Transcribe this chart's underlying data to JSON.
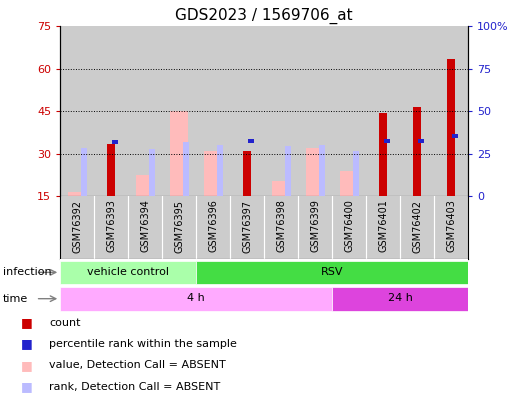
{
  "title": "GDS2023 / 1569706_at",
  "samples": [
    "GSM76392",
    "GSM76393",
    "GSM76394",
    "GSM76395",
    "GSM76396",
    "GSM76397",
    "GSM76398",
    "GSM76399",
    "GSM76400",
    "GSM76401",
    "GSM76402",
    "GSM76403"
  ],
  "count_values": [
    null,
    33.5,
    null,
    null,
    null,
    31.0,
    null,
    null,
    null,
    44.5,
    46.5,
    63.5
  ],
  "rank_values": [
    null,
    32.0,
    null,
    null,
    null,
    32.5,
    null,
    null,
    null,
    32.5,
    32.5,
    35.5
  ],
  "absent_value_values": [
    16.5,
    null,
    22.5,
    45.0,
    31.0,
    null,
    20.5,
    32.0,
    24.0,
    null,
    null,
    null
  ],
  "absent_rank_values": [
    28.5,
    null,
    28.0,
    32.0,
    30.5,
    null,
    29.5,
    30.0,
    26.5,
    null,
    null,
    null
  ],
  "left_ylim": [
    15,
    75
  ],
  "left_yticks": [
    15,
    30,
    45,
    60,
    75
  ],
  "right_ylim": [
    0,
    100
  ],
  "right_yticks": [
    0,
    25,
    50,
    75,
    100
  ],
  "right_yticklabels": [
    "0",
    "25",
    "50",
    "75",
    "100%"
  ],
  "color_count": "#cc0000",
  "color_rank": "#2222cc",
  "color_absent_value": "#ffbbbb",
  "color_absent_rank": "#bbbbff",
  "infection_groups": [
    {
      "label": "vehicle control",
      "start": 0,
      "end": 4,
      "color": "#aaffaa"
    },
    {
      "label": "RSV",
      "start": 4,
      "end": 12,
      "color": "#44dd44"
    }
  ],
  "time_groups": [
    {
      "label": "4 h",
      "start": 0,
      "end": 8,
      "color": "#ffaaff"
    },
    {
      "label": "24 h",
      "start": 8,
      "end": 12,
      "color": "#dd44dd"
    }
  ],
  "bar_bg_color": "#cccccc",
  "left_tick_color": "#cc0000",
  "right_tick_color": "#2222cc",
  "label_fontsize": 7,
  "title_fontsize": 11,
  "grid_yticks": [
    30,
    45,
    60
  ]
}
